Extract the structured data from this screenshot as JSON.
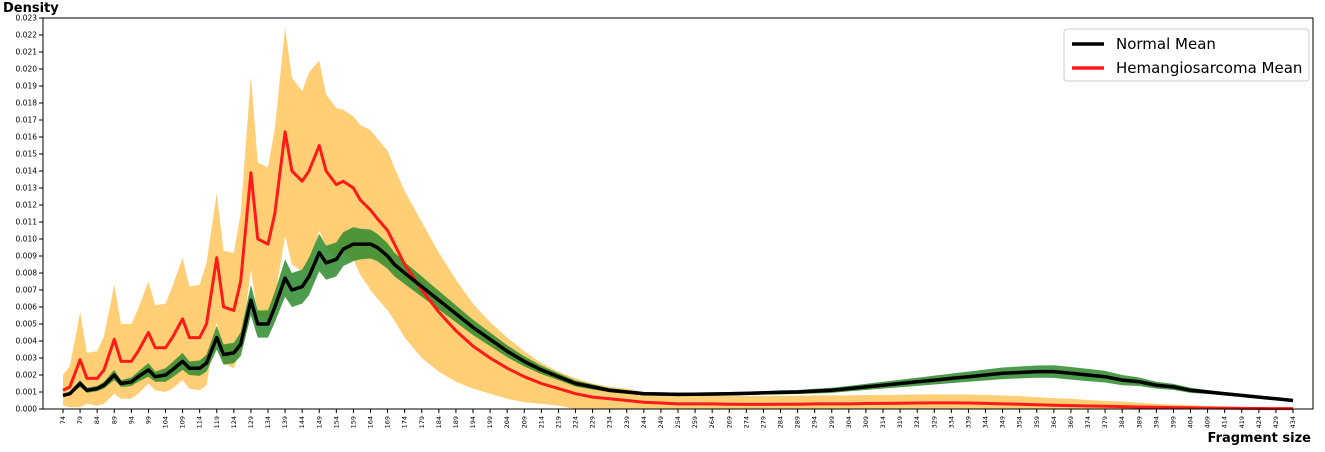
{
  "chart_data": {
    "type": "line",
    "ylabel": "Density",
    "xlabel": "Fragment size",
    "xlim": [
      74,
      434
    ],
    "ylim": [
      0,
      0.023
    ],
    "y_ticks": [
      "0.000",
      "0.001",
      "0.002",
      "0.003",
      "0.004",
      "0.005",
      "0.006",
      "0.007",
      "0.008",
      "0.009",
      "0.010",
      "0.011",
      "0.012",
      "0.013",
      "0.014",
      "0.015",
      "0.016",
      "0.017",
      "0.018",
      "0.019",
      "0.020",
      "0.021",
      "0.022",
      "0.023"
    ],
    "x_ticks": [
      "74",
      "79",
      "84",
      "89",
      "94",
      "99",
      "104",
      "109",
      "114",
      "119",
      "124",
      "129",
      "134",
      "139",
      "144",
      "149",
      "154",
      "159",
      "164",
      "169",
      "174",
      "179",
      "184",
      "189",
      "194",
      "199",
      "204",
      "209",
      "214",
      "219",
      "224",
      "229",
      "234",
      "239",
      "244",
      "249",
      "254",
      "259",
      "264",
      "269",
      "274",
      "279",
      "284",
      "289",
      "294",
      "299",
      "304",
      "309",
      "314",
      "319",
      "324",
      "329",
      "334",
      "339",
      "344",
      "349",
      "354",
      "359",
      "364",
      "369",
      "374",
      "379",
      "384",
      "389",
      "394",
      "399",
      "404",
      "409",
      "414",
      "419",
      "424",
      "429",
      "434"
    ],
    "legend": {
      "placement": "top-right",
      "entries": [
        "Normal Mean",
        "Hemangiosarcoma Mean"
      ]
    },
    "series": [
      {
        "name": "Normal Mean",
        "color": "#000000",
        "band_color": "#2e8b2e",
        "x": [
          74,
          76,
          79,
          81,
          84,
          86,
          89,
          91,
          94,
          96,
          99,
          101,
          104,
          106,
          109,
          111,
          114,
          116,
          119,
          121,
          124,
          126,
          129,
          131,
          134,
          136,
          139,
          141,
          144,
          146,
          149,
          151,
          154,
          156,
          159,
          161,
          164,
          166,
          169,
          171,
          174,
          179,
          184,
          189,
          194,
          199,
          204,
          209,
          214,
          219,
          224,
          229,
          234,
          239,
          244,
          249,
          254,
          259,
          264,
          269,
          274,
          279,
          284,
          289,
          294,
          299,
          304,
          309,
          314,
          319,
          324,
          329,
          334,
          339,
          344,
          349,
          354,
          359,
          364,
          369,
          374,
          379,
          384,
          389,
          394,
          399,
          404,
          409,
          414,
          419,
          424,
          429,
          434
        ],
        "values": [
          0.0008,
          0.0009,
          0.0015,
          0.0011,
          0.0012,
          0.0014,
          0.002,
          0.0015,
          0.0016,
          0.0019,
          0.0023,
          0.0019,
          0.002,
          0.0023,
          0.0028,
          0.0024,
          0.0024,
          0.0027,
          0.0042,
          0.0032,
          0.0033,
          0.0038,
          0.0064,
          0.005,
          0.005,
          0.006,
          0.0077,
          0.007,
          0.0072,
          0.0078,
          0.0092,
          0.0086,
          0.0088,
          0.0094,
          0.0097,
          0.0097,
          0.0097,
          0.0095,
          0.009,
          0.0085,
          0.008,
          0.0072,
          0.0064,
          0.0056,
          0.0048,
          0.0041,
          0.0034,
          0.0028,
          0.0023,
          0.0019,
          0.0015,
          0.0013,
          0.0011,
          0.001,
          0.0009,
          0.00088,
          0.00086,
          0.00087,
          0.00088,
          0.0009,
          0.00092,
          0.00095,
          0.00098,
          0.001,
          0.00105,
          0.0011,
          0.0012,
          0.0013,
          0.0014,
          0.0015,
          0.0016,
          0.0017,
          0.0018,
          0.0019,
          0.002,
          0.0021,
          0.00215,
          0.0022,
          0.0022,
          0.0021,
          0.002,
          0.0019,
          0.0017,
          0.0016,
          0.0014,
          0.0013,
          0.0011,
          0.001,
          0.0009,
          0.0008,
          0.0007,
          0.0006,
          0.0005
        ],
        "band": [
          0.0001,
          0.0001,
          0.0002,
          0.00015,
          0.00015,
          0.0002,
          0.0003,
          0.0002,
          0.00025,
          0.0003,
          0.0004,
          0.0003,
          0.0004,
          0.00045,
          0.0005,
          0.0004,
          0.00045,
          0.0005,
          0.0007,
          0.0006,
          0.0006,
          0.0007,
          0.0009,
          0.0008,
          0.0008,
          0.0009,
          0.0011,
          0.001,
          0.001,
          0.0011,
          0.0011,
          0.001,
          0.001,
          0.001,
          0.001,
          0.0009,
          0.00085,
          0.0008,
          0.00075,
          0.0007,
          0.00065,
          0.0006,
          0.00055,
          0.0005,
          0.00045,
          0.0004,
          0.00035,
          0.0003,
          0.00025,
          0.0002,
          0.00018,
          0.00015,
          0.00012,
          0.0001,
          0.0001,
          0.0001,
          0.0001,
          0.0001,
          0.0001,
          0.0001,
          0.0001,
          0.0001,
          0.00012,
          0.00012,
          0.00014,
          0.00015,
          0.00016,
          0.00018,
          0.0002,
          0.00022,
          0.00024,
          0.00026,
          0.00028,
          0.0003,
          0.00032,
          0.00034,
          0.00035,
          0.00036,
          0.00037,
          0.00037,
          0.00036,
          0.00034,
          0.0003,
          0.00025,
          0.0002,
          0.00018,
          0.00015,
          0.00012,
          0.0001,
          8e-05,
          8e-05,
          7e-05,
          6e-05
        ]
      },
      {
        "name": "Hemangiosarcoma Mean",
        "color": "#ff1a1a",
        "band_color": "#ffc966",
        "x": [
          74,
          76,
          79,
          81,
          84,
          86,
          89,
          91,
          94,
          96,
          99,
          101,
          104,
          106,
          109,
          111,
          114,
          116,
          119,
          121,
          124,
          126,
          129,
          131,
          134,
          136,
          139,
          141,
          144,
          146,
          149,
          151,
          154,
          156,
          159,
          161,
          164,
          166,
          169,
          171,
          174,
          179,
          184,
          189,
          194,
          199,
          204,
          209,
          214,
          219,
          224,
          229,
          234,
          239,
          244,
          249,
          254,
          259,
          264,
          269,
          274,
          279,
          284,
          289,
          294,
          299,
          304,
          309,
          314,
          319,
          324,
          329,
          334,
          339,
          344,
          349,
          354,
          359,
          364,
          369,
          374,
          379,
          384,
          389,
          394,
          399,
          404,
          409,
          414,
          419,
          424,
          429,
          434
        ],
        "values": [
          0.0011,
          0.0013,
          0.0029,
          0.0018,
          0.0018,
          0.0023,
          0.0041,
          0.0028,
          0.0028,
          0.0034,
          0.0045,
          0.0036,
          0.0036,
          0.0042,
          0.0053,
          0.0042,
          0.0042,
          0.005,
          0.0089,
          0.006,
          0.0058,
          0.0075,
          0.0139,
          0.01,
          0.0097,
          0.0115,
          0.0163,
          0.014,
          0.0134,
          0.014,
          0.0155,
          0.014,
          0.0132,
          0.0134,
          0.013,
          0.0123,
          0.0117,
          0.0112,
          0.0105,
          0.0097,
          0.0085,
          0.007,
          0.0057,
          0.0046,
          0.0037,
          0.003,
          0.0024,
          0.0019,
          0.0015,
          0.0012,
          0.0009,
          0.0007,
          0.0006,
          0.0005,
          0.0004,
          0.00035,
          0.0003,
          0.0003,
          0.0003,
          0.00028,
          0.00027,
          0.00027,
          0.00028,
          0.00028,
          0.0003,
          0.0003,
          0.0003,
          0.00032,
          0.00033,
          0.00034,
          0.00035,
          0.00036,
          0.00036,
          0.00035,
          0.00033,
          0.0003,
          0.00028,
          0.00025,
          0.00022,
          0.0002,
          0.00018,
          0.00016,
          0.00014,
          0.00012,
          0.0001,
          8e-05,
          7e-05,
          6e-05,
          5e-05,
          4e-05,
          3e-05,
          2e-05,
          2e-05
        ],
        "band": [
          0.0009,
          0.0012,
          0.0028,
          0.0015,
          0.0016,
          0.002,
          0.0032,
          0.0022,
          0.0022,
          0.0025,
          0.003,
          0.0025,
          0.0026,
          0.003,
          0.0036,
          0.003,
          0.0031,
          0.0036,
          0.0038,
          0.0033,
          0.0034,
          0.004,
          0.0057,
          0.0045,
          0.0045,
          0.005,
          0.0061,
          0.0055,
          0.0053,
          0.0058,
          0.005,
          0.0045,
          0.0045,
          0.0042,
          0.0042,
          0.0044,
          0.0047,
          0.0047,
          0.0047,
          0.0045,
          0.0043,
          0.004,
          0.0035,
          0.003,
          0.0025,
          0.0021,
          0.0018,
          0.0015,
          0.0012,
          0.001,
          0.0009,
          0.0008,
          0.0007,
          0.0007,
          0.0006,
          0.0006,
          0.0006,
          0.0005,
          0.0005,
          0.0005,
          0.0005,
          0.0005,
          0.0005,
          0.0005,
          0.0005,
          0.0005,
          0.0005,
          0.0005,
          0.0005,
          0.0005,
          0.0005,
          0.0005,
          0.0005,
          0.0005,
          0.0005,
          0.0005,
          0.00048,
          0.00045,
          0.00042,
          0.0004,
          0.00035,
          0.00032,
          0.0003,
          0.00025,
          0.0002,
          0.00018,
          0.00015,
          0.00012,
          0.0001,
          8e-05,
          6e-05,
          5e-05,
          4e-05
        ]
      }
    ]
  }
}
